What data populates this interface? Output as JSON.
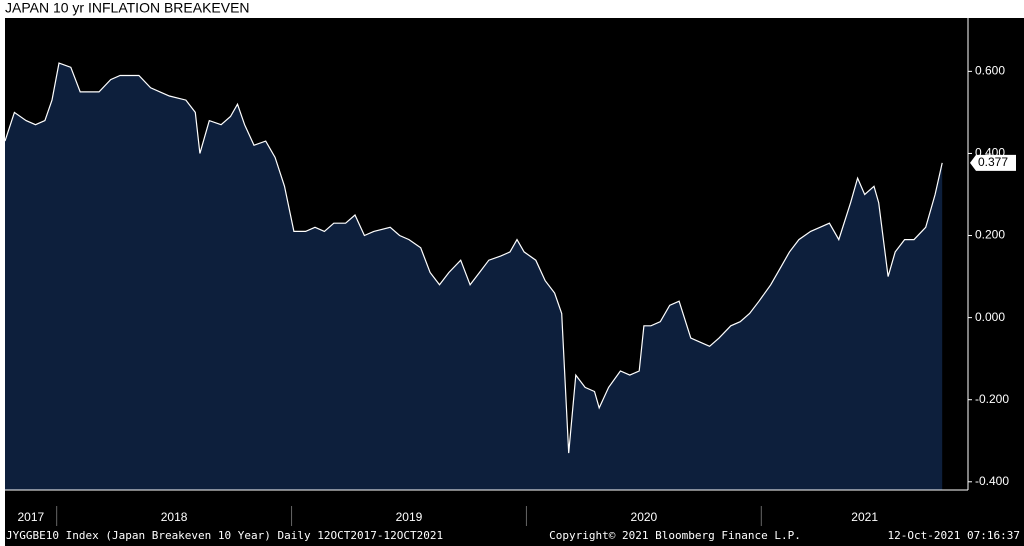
{
  "chart_data": {
    "type": "area",
    "title": "JAPAN 10 yr INFLATION BREAKEVEN",
    "footer": {
      "left": "JYGGBE10 Index (Japan Breakeven 10 Year)  Daily 12OCT2017-12OCT2021",
      "center": "Copyright© 2021 Bloomberg Finance L.P.",
      "right": "12-Oct-2021 07:16:37"
    },
    "color": "#0d1f3c",
    "line_color": "#ffffff",
    "xlim": [
      2017.78,
      2021.88
    ],
    "xticks": [
      2018,
      2019,
      2020,
      2021
    ],
    "year_labels": [
      "2017",
      "2018",
      "2019",
      "2020",
      "2021"
    ],
    "ylim": [
      -0.42,
      0.73
    ],
    "yticks": [
      {
        "value": -0.4,
        "label": "-0.400"
      },
      {
        "value": -0.2,
        "label": "-0.200"
      },
      {
        "value": 0,
        "label": "0.000"
      },
      {
        "value": 0.2,
        "label": "0.200"
      },
      {
        "value": 0.4,
        "label": "0.400"
      },
      {
        "value": 0.6,
        "label": "0.600"
      }
    ],
    "x": [
      2017.78,
      2017.82,
      2017.87,
      2017.91,
      2017.95,
      2017.98,
      2018.01,
      2018.06,
      2018.1,
      2018.14,
      2018.18,
      2018.23,
      2018.27,
      2018.31,
      2018.35,
      2018.4,
      2018.44,
      2018.48,
      2018.55,
      2018.59,
      2018.61,
      2018.65,
      2018.7,
      2018.74,
      2018.77,
      2018.8,
      2018.84,
      2018.89,
      2018.93,
      2018.97,
      2019.01,
      2019.06,
      2019.1,
      2019.14,
      2019.18,
      2019.23,
      2019.27,
      2019.31,
      2019.35,
      2019.42,
      2019.46,
      2019.5,
      2019.55,
      2019.59,
      2019.63,
      2019.67,
      2019.72,
      2019.76,
      2019.8,
      2019.84,
      2019.89,
      2019.93,
      2019.96,
      2019.99,
      2020.04,
      2020.08,
      2020.12,
      2020.15,
      2020.18,
      2020.21,
      2020.25,
      2020.29,
      2020.31,
      2020.35,
      2020.4,
      2020.44,
      2020.48,
      2020.5,
      2020.53,
      2020.57,
      2020.61,
      2020.65,
      2020.7,
      2020.74,
      2020.78,
      2020.82,
      2020.87,
      2020.91,
      2020.95,
      2020.99,
      2021.04,
      2021.08,
      2021.12,
      2021.16,
      2021.21,
      2021.25,
      2021.29,
      2021.33,
      2021.38,
      2021.41,
      2021.44,
      2021.48,
      2021.5,
      2021.54,
      2021.57,
      2021.61,
      2021.65,
      2021.7,
      2021.74,
      2021.77
    ],
    "values": [
      0.43,
      0.5,
      0.48,
      0.47,
      0.48,
      0.53,
      0.62,
      0.61,
      0.55,
      0.55,
      0.55,
      0.58,
      0.59,
      0.59,
      0.59,
      0.56,
      0.55,
      0.54,
      0.53,
      0.5,
      0.4,
      0.48,
      0.47,
      0.49,
      0.52,
      0.47,
      0.42,
      0.43,
      0.39,
      0.32,
      0.21,
      0.21,
      0.22,
      0.21,
      0.23,
      0.23,
      0.25,
      0.2,
      0.21,
      0.22,
      0.2,
      0.19,
      0.17,
      0.11,
      0.08,
      0.11,
      0.14,
      0.08,
      0.11,
      0.14,
      0.15,
      0.16,
      0.19,
      0.16,
      0.14,
      0.09,
      0.06,
      0.01,
      -0.33,
      -0.14,
      -0.17,
      -0.18,
      -0.22,
      -0.17,
      -0.13,
      -0.14,
      -0.13,
      -0.02,
      -0.02,
      -0.01,
      0.03,
      0.04,
      -0.05,
      -0.06,
      -0.07,
      -0.05,
      -0.02,
      -0.01,
      0.01,
      0.04,
      0.08,
      0.12,
      0.16,
      0.19,
      0.21,
      0.22,
      0.23,
      0.19,
      0.28,
      0.34,
      0.3,
      0.32,
      0.28,
      0.1,
      0.16,
      0.19,
      0.19,
      0.22,
      0.3,
      0.377
    ]
  }
}
